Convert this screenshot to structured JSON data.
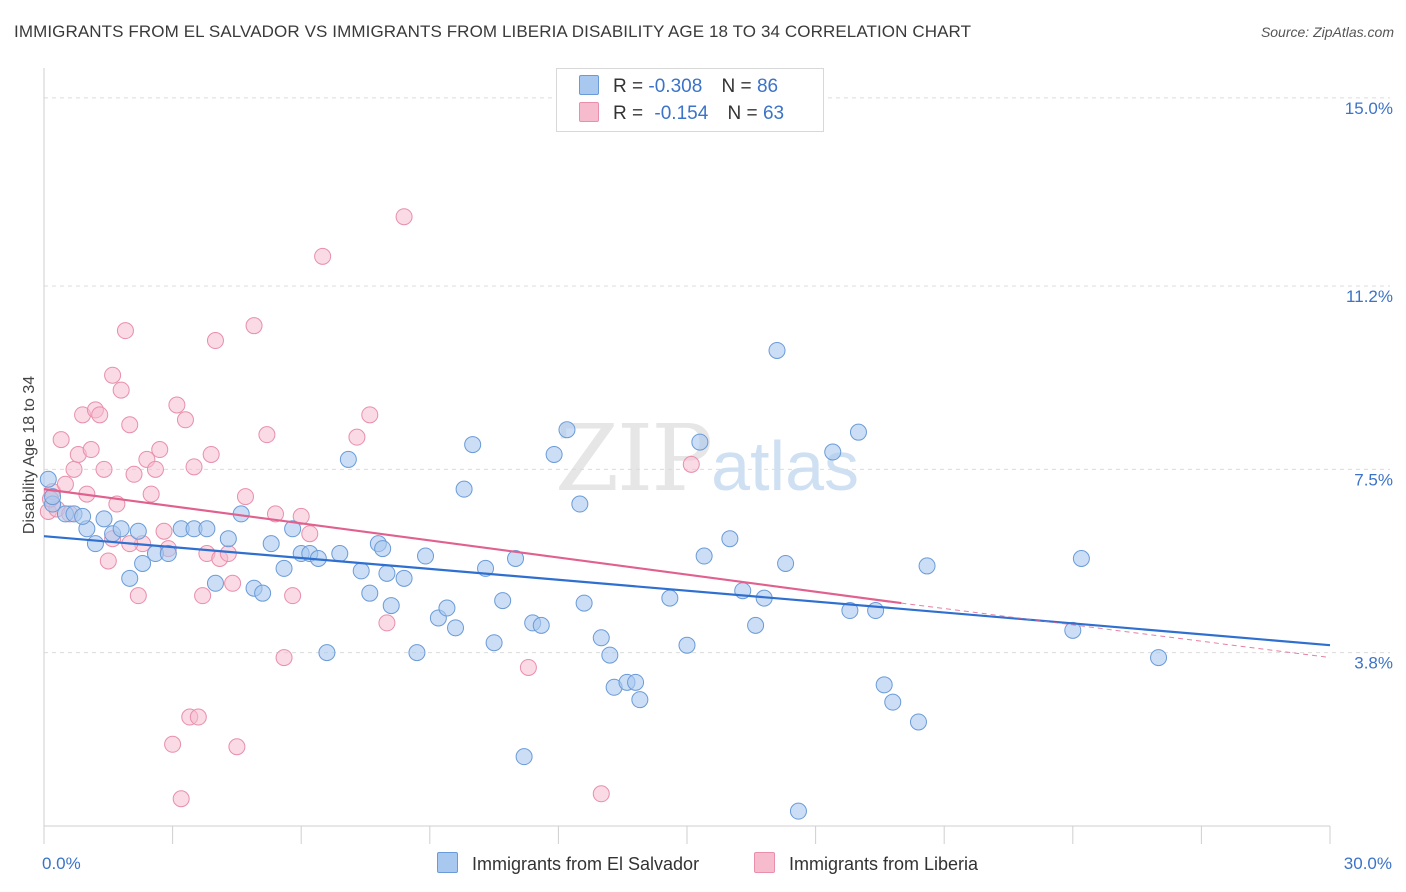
{
  "title": "IMMIGRANTS FROM EL SALVADOR VS IMMIGRANTS FROM LIBERIA DISABILITY AGE 18 TO 34 CORRELATION CHART",
  "source": "Source: ZipAtlas.com",
  "watermark": {
    "zip": "ZIP",
    "atlas": "atlas"
  },
  "legend": {
    "r_label": "R =",
    "n_label": "N =",
    "series1": {
      "r": "-0.308",
      "n": "86"
    },
    "series2": {
      "r": "-0.154",
      "n": "63"
    }
  },
  "bottom_legend": {
    "series1": "Immigrants from El Salvador",
    "series2": "Immigrants from Liberia"
  },
  "colors": {
    "series1_fill": "#a9c8ef",
    "series1_stroke": "#6a9bd8",
    "series1_line": "#2f6fcf",
    "series2_fill": "#f6bccd",
    "series2_stroke": "#e88fab",
    "series2_line": "#e0608e",
    "tick_text": "#3b73c8"
  },
  "chart_data": {
    "type": "scatter",
    "title": "IMMIGRANTS FROM EL SALVADOR VS IMMIGRANTS FROM LIBERIA DISABILITY AGE 18 TO 34 CORRELATION CHART",
    "xlabel": "",
    "ylabel": "Disability Age 18 to 34",
    "xlim": [
      0,
      30
    ],
    "ylim": [
      0.3,
      15.4
    ],
    "x_tick_labels": [
      "0.0%",
      "30.0%"
    ],
    "y_ticks": [
      3.8,
      7.5,
      11.2,
      15.0
    ],
    "y_tick_labels": [
      "3.8%",
      "7.5%",
      "11.2%",
      "15.0%"
    ],
    "grid": "horizontal-dashed",
    "legend_position": "top-center",
    "series": [
      {
        "name": "Immigrants from El Salvador",
        "r": -0.308,
        "n": 86,
        "trend": {
          "x": [
            0,
            30
          ],
          "y": [
            6.15,
            3.95
          ]
        },
        "points": [
          [
            0.1,
            7.3
          ],
          [
            0.2,
            6.8
          ],
          [
            0.5,
            6.6
          ],
          [
            0.7,
            6.6
          ],
          [
            1.0,
            6.3
          ],
          [
            1.2,
            6.0
          ],
          [
            1.4,
            6.5
          ],
          [
            1.6,
            6.2
          ],
          [
            1.8,
            6.3
          ],
          [
            2.0,
            5.3
          ],
          [
            2.2,
            6.25
          ],
          [
            2.3,
            5.6
          ],
          [
            2.6,
            5.8
          ],
          [
            2.9,
            5.8
          ],
          [
            3.2,
            6.3
          ],
          [
            3.5,
            6.3
          ],
          [
            3.8,
            6.3
          ],
          [
            4.0,
            5.2
          ],
          [
            4.6,
            6.6
          ],
          [
            4.9,
            5.1
          ],
          [
            5.1,
            5.0
          ],
          [
            5.3,
            6.0
          ],
          [
            5.6,
            5.5
          ],
          [
            5.8,
            6.3
          ],
          [
            6.0,
            5.8
          ],
          [
            6.2,
            5.8
          ],
          [
            6.4,
            5.7
          ],
          [
            6.6,
            3.8
          ],
          [
            6.9,
            5.8
          ],
          [
            7.1,
            7.7
          ],
          [
            7.4,
            5.45
          ],
          [
            7.6,
            5.0
          ],
          [
            7.8,
            6.0
          ],
          [
            8.0,
            5.4
          ],
          [
            8.1,
            4.75
          ],
          [
            8.4,
            5.3
          ],
          [
            8.7,
            3.8
          ],
          [
            8.9,
            5.75
          ],
          [
            9.2,
            4.5
          ],
          [
            9.4,
            4.7
          ],
          [
            9.6,
            4.3
          ],
          [
            9.8,
            7.1
          ],
          [
            10.0,
            8.0
          ],
          [
            10.3,
            5.5
          ],
          [
            10.5,
            4.0
          ],
          [
            10.7,
            4.85
          ],
          [
            11.0,
            5.7
          ],
          [
            11.2,
            1.7
          ],
          [
            11.4,
            4.4
          ],
          [
            11.6,
            4.35
          ],
          [
            11.9,
            7.8
          ],
          [
            12.2,
            8.3
          ],
          [
            12.5,
            6.8
          ],
          [
            12.6,
            4.8
          ],
          [
            13.0,
            4.1
          ],
          [
            13.2,
            3.75
          ],
          [
            13.3,
            3.1
          ],
          [
            13.6,
            3.2
          ],
          [
            13.8,
            3.2
          ],
          [
            13.9,
            2.85
          ],
          [
            14.6,
            4.9
          ],
          [
            15.0,
            3.95
          ],
          [
            15.3,
            8.05
          ],
          [
            15.4,
            5.75
          ],
          [
            16.0,
            6.1
          ],
          [
            16.3,
            5.05
          ],
          [
            16.6,
            4.35
          ],
          [
            16.8,
            4.9
          ],
          [
            17.1,
            9.9
          ],
          [
            17.3,
            5.6
          ],
          [
            17.6,
            0.6
          ],
          [
            18.4,
            7.85
          ],
          [
            18.8,
            4.65
          ],
          [
            19.0,
            8.25
          ],
          [
            19.4,
            4.65
          ],
          [
            19.6,
            3.15
          ],
          [
            19.8,
            2.8
          ],
          [
            20.4,
            2.4
          ],
          [
            20.6,
            5.55
          ],
          [
            24.0,
            4.25
          ],
          [
            24.2,
            5.7
          ],
          [
            26.0,
            3.7
          ],
          [
            0.2,
            6.95
          ],
          [
            0.9,
            6.55
          ],
          [
            4.3,
            6.1
          ],
          [
            7.9,
            5.9
          ]
        ]
      },
      {
        "name": "Immigrants from Liberia",
        "r": -0.154,
        "n": 63,
        "trend": {
          "x": [
            0,
            20
          ],
          "y": [
            7.1,
            4.8
          ],
          "dashed_to": {
            "x": 30,
            "y": 3.7
          }
        },
        "points": [
          [
            0.1,
            6.65
          ],
          [
            0.2,
            7.05
          ],
          [
            0.3,
            6.7
          ],
          [
            0.4,
            8.1
          ],
          [
            0.5,
            7.2
          ],
          [
            0.6,
            6.6
          ],
          [
            0.7,
            7.5
          ],
          [
            0.8,
            7.8
          ],
          [
            0.9,
            8.6
          ],
          [
            1.0,
            7.0
          ],
          [
            1.1,
            7.9
          ],
          [
            1.2,
            8.7
          ],
          [
            1.3,
            8.6
          ],
          [
            1.4,
            7.5
          ],
          [
            1.5,
            5.65
          ],
          [
            1.6,
            9.4
          ],
          [
            1.7,
            6.8
          ],
          [
            1.8,
            9.1
          ],
          [
            1.6,
            6.1
          ],
          [
            1.9,
            10.3
          ],
          [
            2.0,
            8.4
          ],
          [
            2.1,
            7.4
          ],
          [
            2.2,
            4.95
          ],
          [
            2.3,
            6.0
          ],
          [
            2.4,
            7.7
          ],
          [
            2.5,
            7.0
          ],
          [
            2.6,
            7.5
          ],
          [
            2.7,
            7.9
          ],
          [
            2.8,
            6.25
          ],
          [
            2.9,
            5.9
          ],
          [
            3.0,
            1.95
          ],
          [
            3.1,
            8.8
          ],
          [
            3.2,
            0.85
          ],
          [
            3.3,
            8.5
          ],
          [
            3.4,
            2.5
          ],
          [
            3.5,
            7.55
          ],
          [
            3.6,
            2.5
          ],
          [
            3.7,
            4.95
          ],
          [
            3.8,
            5.8
          ],
          [
            3.9,
            7.8
          ],
          [
            4.0,
            10.1
          ],
          [
            4.1,
            5.7
          ],
          [
            4.3,
            5.8
          ],
          [
            4.4,
            5.2
          ],
          [
            4.5,
            1.9
          ],
          [
            4.7,
            6.95
          ],
          [
            4.9,
            10.4
          ],
          [
            5.2,
            8.2
          ],
          [
            5.4,
            6.6
          ],
          [
            5.6,
            3.7
          ],
          [
            5.8,
            4.95
          ],
          [
            6.0,
            6.55
          ],
          [
            6.2,
            6.2
          ],
          [
            6.5,
            11.8
          ],
          [
            7.3,
            8.15
          ],
          [
            7.6,
            8.6
          ],
          [
            8.0,
            4.4
          ],
          [
            8.4,
            12.6
          ],
          [
            11.3,
            3.5
          ],
          [
            13.0,
            0.95
          ],
          [
            15.1,
            7.6
          ],
          [
            0.15,
            6.9
          ],
          [
            2.0,
            6.0
          ]
        ]
      }
    ]
  }
}
